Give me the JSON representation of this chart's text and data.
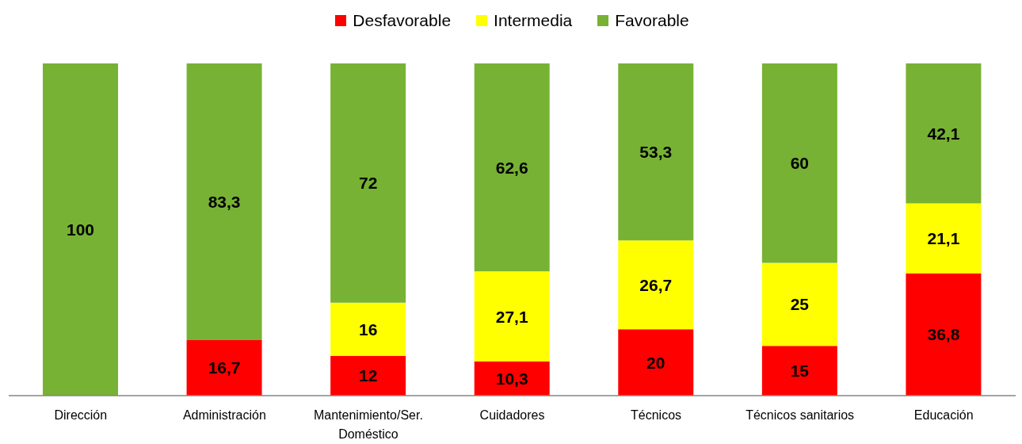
{
  "chart_data": {
    "type": "bar",
    "stacked": true,
    "legend": "top",
    "categories": [
      "Dirección",
      "Administración",
      "Mantenimiento/Ser. Doméstico",
      "Cuidadores",
      "Técnicos",
      "Técnicos sanitarios",
      "Educación"
    ],
    "series": [
      {
        "name": "Desfavorable",
        "color": "#ff0000",
        "values": [
          null,
          16.7,
          12,
          10.3,
          20,
          15,
          36.8
        ],
        "value_labels": [
          null,
          "16,7",
          "12",
          "10,3",
          "20",
          "15",
          "36,8"
        ]
      },
      {
        "name": "Intermedia",
        "color": "#ffff00",
        "values": [
          null,
          null,
          16,
          27.1,
          26.7,
          25,
          21.1
        ],
        "value_labels": [
          null,
          null,
          "16",
          "27,1",
          "26,7",
          "25",
          "21,1"
        ]
      },
      {
        "name": "Favorable",
        "color": "#77b234",
        "values": [
          100,
          83.3,
          72,
          62.6,
          53.3,
          60,
          42.1
        ],
        "value_labels": [
          "100",
          "83,3",
          "72",
          "62,6",
          "53,3",
          "60",
          "42,1"
        ]
      }
    ]
  }
}
